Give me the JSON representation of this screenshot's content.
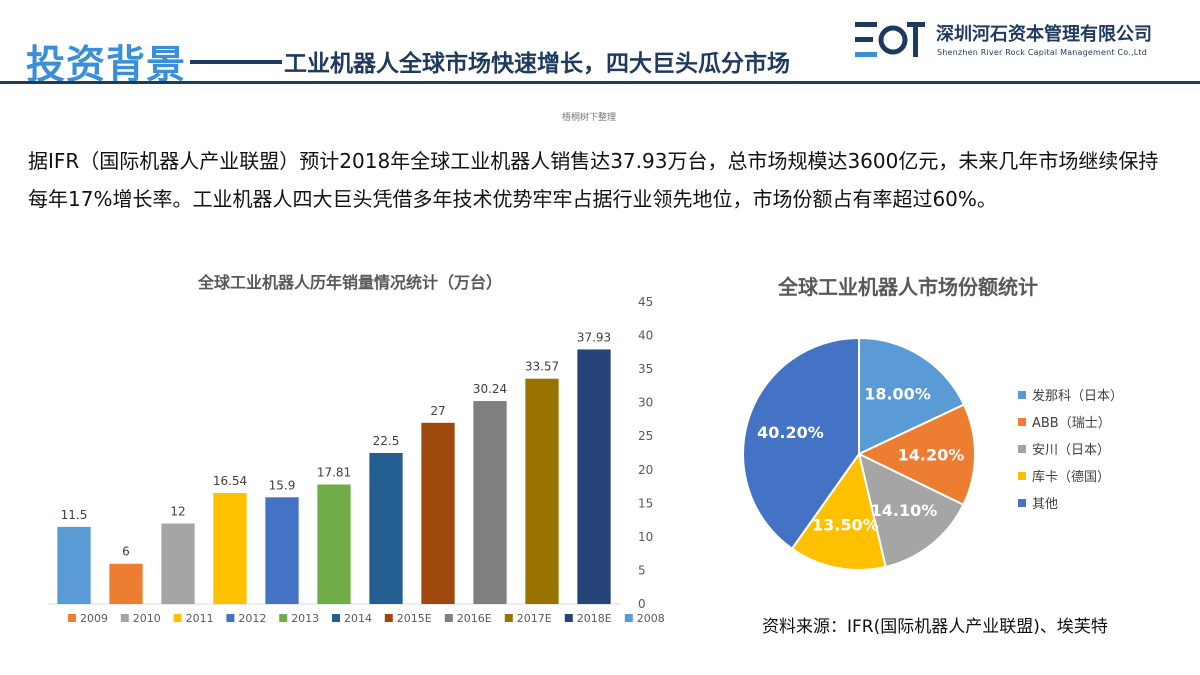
{
  "header": {
    "title_main": "投资背景",
    "title_sub": "工业机器人全球市场快速增长，四大巨头瓜分市场",
    "company_cn": "深圳河石资本管理有限公司",
    "company_en": "Shenzhen River Rock Capital Management Co.,Ltd",
    "accent_color": "#3b8fd6",
    "navy_color": "#1f3a5f"
  },
  "note": "梧桐树下整理",
  "paragraph": "据IFR（国际机器人产业联盟）预计2018年全球工业机器人销售达37.93万台，总市场规模达3600亿元，未来几年市场继续保持每年17%增长率。工业机器人四大巨头凭借多年技术优势牢牢占据行业领先地位，市场份额占有率超过60%。",
  "source": "资料来源：IFR(国际机器人产业联盟)、埃芙特",
  "chart_data": [
    {
      "type": "bar",
      "title": "全球工业机器人历年销量情况统计（万台）",
      "categories": [
        "2008",
        "2009",
        "2010",
        "2011",
        "2012",
        "2013",
        "2014",
        "2015E",
        "2016E",
        "2017E",
        "2018E"
      ],
      "values": [
        11.5,
        6,
        12,
        16.54,
        15.9,
        17.81,
        22.5,
        27,
        30.24,
        33.57,
        37.93
      ],
      "value_labels": [
        "11.5",
        "6",
        "12",
        "16.54",
        "15.9",
        "17.81",
        "22.5",
        "27",
        "30.24",
        "33.57",
        "37.93"
      ],
      "colors": [
        "#5b9bd5",
        "#ed7d31",
        "#a5a5a5",
        "#ffc000",
        "#4472c4",
        "#70ad47",
        "#255e91",
        "#9e480e",
        "#7f7f7f",
        "#997300",
        "#264478"
      ],
      "ylim": [
        0,
        45
      ],
      "yticks": [
        0,
        5,
        10,
        15,
        20,
        25,
        30,
        35,
        40,
        45
      ],
      "yaxis_side": "right",
      "legend_position": "bottom",
      "legend": [
        "2009",
        "2010",
        "2011",
        "2012",
        "2013",
        "2014",
        "2015E",
        "2016E",
        "2017E",
        "2018E",
        "2008"
      ],
      "legend_colors": [
        "#ed7d31",
        "#a5a5a5",
        "#ffc000",
        "#4472c4",
        "#70ad47",
        "#255e91",
        "#9e480e",
        "#7f7f7f",
        "#997300",
        "#264478",
        "#5b9bd5"
      ],
      "grid": false
    },
    {
      "type": "pie",
      "title": "全球工业机器人市场份额统计",
      "labels": [
        "发那科（日本）",
        "ABB（瑞士）",
        "安川（日本）",
        "库卡（德国）",
        "其他"
      ],
      "values": [
        18.0,
        14.2,
        14.1,
        13.5,
        40.2
      ],
      "value_labels": [
        "18.00%",
        "14.20%",
        "14.10%",
        "13.50%",
        "40.20%"
      ],
      "colors": [
        "#5b9bd5",
        "#ed7d31",
        "#a5a5a5",
        "#ffc000",
        "#4472c4"
      ],
      "legend_position": "right"
    }
  ]
}
